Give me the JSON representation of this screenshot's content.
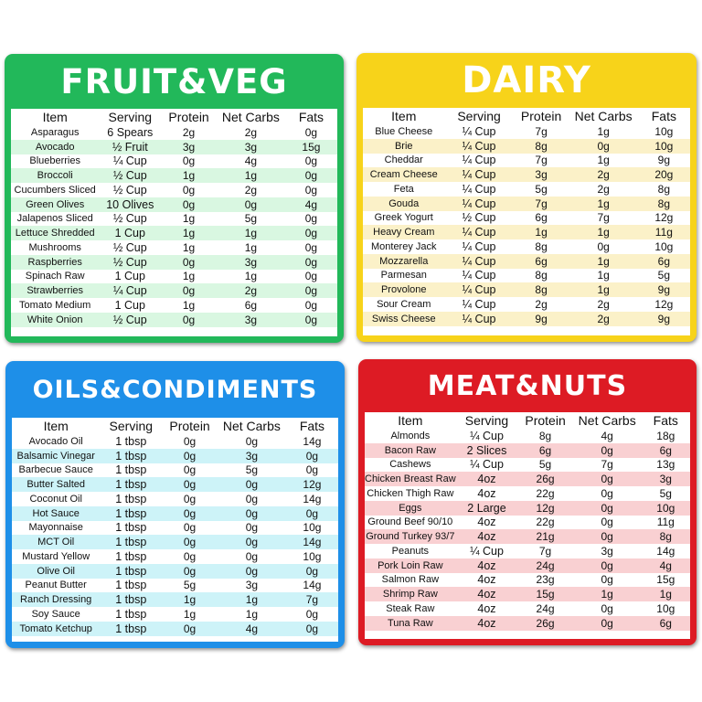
{
  "colors": {
    "fruit_veg": {
      "header": "#22b85a",
      "stripe": "#d9f7e1",
      "border": "#1fae56"
    },
    "dairy": {
      "header": "#f7d31a",
      "stripe": "#fbf1c8",
      "border": "#eccb13"
    },
    "oils_condiments": {
      "header": "#1e8fe8",
      "stripe": "#cdf3f8",
      "border": "#1a86df"
    },
    "meat_nuts": {
      "header": "#dd1b24",
      "stripe": "#f9d0d2",
      "border": "#d3161f"
    }
  },
  "cards": [
    {
      "id": "fruit-veg",
      "title": "FRUIT&VEG",
      "columns": [
        "Item",
        "Serving",
        "Protein",
        "Net Carbs",
        "Fats"
      ],
      "rows": [
        [
          "Asparagus",
          "6 Spears",
          "2g",
          "2g",
          "0g"
        ],
        [
          "Avocado",
          "½ Fruit",
          "3g",
          "3g",
          "15g"
        ],
        [
          "Blueberries",
          "¼ Cup",
          "0g",
          "4g",
          "0g"
        ],
        [
          "Broccoli",
          "½ Cup",
          "1g",
          "1g",
          "0g"
        ],
        [
          "Cucumbers Sliced",
          "½ Cup",
          "0g",
          "2g",
          "0g"
        ],
        [
          "Green Olives",
          "10 Olives",
          "0g",
          "0g",
          "4g"
        ],
        [
          "Jalapenos Sliced",
          "½ Cup",
          "1g",
          "5g",
          "0g"
        ],
        [
          "Lettuce Shredded",
          "1 Cup",
          "1g",
          "1g",
          "0g"
        ],
        [
          "Mushrooms",
          "½ Cup",
          "1g",
          "1g",
          "0g"
        ],
        [
          "Raspberries",
          "½ Cup",
          "0g",
          "3g",
          "0g"
        ],
        [
          "Spinach Raw",
          "1 Cup",
          "1g",
          "1g",
          "0g"
        ],
        [
          "Strawberries",
          "¼ Cup",
          "0g",
          "2g",
          "0g"
        ],
        [
          "Tomato Medium",
          "1 Cup",
          "1g",
          "6g",
          "0g"
        ],
        [
          "White Onion",
          "½ Cup",
          "0g",
          "3g",
          "0g"
        ]
      ]
    },
    {
      "id": "dairy",
      "title": "DAIRY",
      "columns": [
        "Item",
        "Serving",
        "Protein",
        "Net Carbs",
        "Fats"
      ],
      "rows": [
        [
          "Blue Cheese",
          "¼ Cup",
          "7g",
          "1g",
          "10g"
        ],
        [
          "Brie",
          "¼ Cup",
          "8g",
          "0g",
          "10g"
        ],
        [
          "Cheddar",
          "¼ Cup",
          "7g",
          "1g",
          "9g"
        ],
        [
          "Cream Cheese",
          "¼ Cup",
          "3g",
          "2g",
          "20g"
        ],
        [
          "Feta",
          "¼ Cup",
          "5g",
          "2g",
          "8g"
        ],
        [
          "Gouda",
          "¼ Cup",
          "7g",
          "1g",
          "8g"
        ],
        [
          "Greek Yogurt",
          "½ Cup",
          "6g",
          "7g",
          "12g"
        ],
        [
          "Heavy Cream",
          "¼ Cup",
          "1g",
          "1g",
          "11g"
        ],
        [
          "Monterey Jack",
          "¼ Cup",
          "8g",
          "0g",
          "10g"
        ],
        [
          "Mozzarella",
          "¼ Cup",
          "6g",
          "1g",
          "6g"
        ],
        [
          "Parmesan",
          "¼ Cup",
          "8g",
          "1g",
          "5g"
        ],
        [
          "Provolone",
          "¼ Cup",
          "8g",
          "1g",
          "9g"
        ],
        [
          "Sour Cream",
          "¼ Cup",
          "2g",
          "2g",
          "12g"
        ],
        [
          "Swiss Cheese",
          "¼ Cup",
          "9g",
          "2g",
          "9g"
        ]
      ]
    },
    {
      "id": "oils-condiments",
      "title": "OILS&CONDIMENTS",
      "columns": [
        "Item",
        "Serving",
        "Protein",
        "Net Carbs",
        "Fats"
      ],
      "rows": [
        [
          "Avocado Oil",
          "1 tbsp",
          "0g",
          "0g",
          "14g"
        ],
        [
          "Balsamic Vinegar",
          "1 tbsp",
          "0g",
          "3g",
          "0g"
        ],
        [
          "Barbecue Sauce",
          "1 tbsp",
          "0g",
          "5g",
          "0g"
        ],
        [
          "Butter Salted",
          "1 tbsp",
          "0g",
          "0g",
          "12g"
        ],
        [
          "Coconut Oil",
          "1 tbsp",
          "0g",
          "0g",
          "14g"
        ],
        [
          "Hot Sauce",
          "1 tbsp",
          "0g",
          "0g",
          "0g"
        ],
        [
          "Mayonnaise",
          "1 tbsp",
          "0g",
          "0g",
          "10g"
        ],
        [
          "MCT Oil",
          "1 tbsp",
          "0g",
          "0g",
          "14g"
        ],
        [
          "Mustard Yellow",
          "1 tbsp",
          "0g",
          "0g",
          "10g"
        ],
        [
          "Olive Oil",
          "1 tbsp",
          "0g",
          "0g",
          "0g"
        ],
        [
          "Peanut Butter",
          "1 tbsp",
          "5g",
          "3g",
          "14g"
        ],
        [
          "Ranch Dressing",
          "1 tbsp",
          "1g",
          "1g",
          "7g"
        ],
        [
          "Soy Sauce",
          "1 tbsp",
          "1g",
          "1g",
          "0g"
        ],
        [
          "Tomato Ketchup",
          "1 tbsp",
          "0g",
          "4g",
          "0g"
        ]
      ]
    },
    {
      "id": "meat-nuts",
      "title": "MEAT&NUTS",
      "columns": [
        "Item",
        "Serving",
        "Protein",
        "Net Carbs",
        "Fats"
      ],
      "rows": [
        [
          "Almonds",
          "¼ Cup",
          "8g",
          "4g",
          "18g"
        ],
        [
          "Bacon Raw",
          "2 Slices",
          "6g",
          "0g",
          "6g"
        ],
        [
          "Cashews",
          "¼ Cup",
          "5g",
          "7g",
          "13g"
        ],
        [
          "Chicken Breast Raw",
          "4oz",
          "26g",
          "0g",
          "3g"
        ],
        [
          "Chicken Thigh Raw",
          "4oz",
          "22g",
          "0g",
          "5g"
        ],
        [
          "Eggs",
          "2 Large",
          "12g",
          "0g",
          "10g"
        ],
        [
          "Ground Beef 90/10",
          "4oz",
          "22g",
          "0g",
          "11g"
        ],
        [
          "Ground Turkey 93/7",
          "4oz",
          "21g",
          "0g",
          "8g"
        ],
        [
          "Peanuts",
          "¼ Cup",
          "7g",
          "3g",
          "14g"
        ],
        [
          "Pork Loin Raw",
          "4oz",
          "24g",
          "0g",
          "4g"
        ],
        [
          "Salmon Raw",
          "4oz",
          "23g",
          "0g",
          "15g"
        ],
        [
          "Shrimp Raw",
          "4oz",
          "15g",
          "1g",
          "1g"
        ],
        [
          "Steak Raw",
          "4oz",
          "24g",
          "0g",
          "10g"
        ],
        [
          "Tuna Raw",
          "4oz",
          "26g",
          "0g",
          "6g"
        ]
      ]
    }
  ]
}
